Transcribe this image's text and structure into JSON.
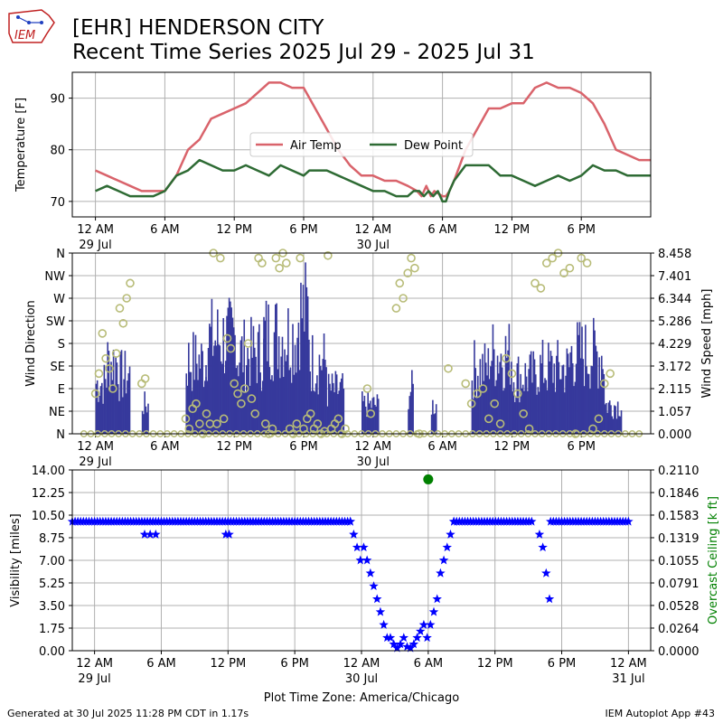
{
  "header": {
    "title_line1": "[EHR] HENDERSON CITY",
    "title_line2": "Recent Time Series 2025 Jul 29 - 2025 Jul 31",
    "logo_text": "IEM"
  },
  "footer": {
    "generated": "Generated at 30 Jul 2025 11:28 PM CDT in 1.17s",
    "app": "IEM Autoplot App #43"
  },
  "colors": {
    "air_temp": "#d9636b",
    "dew_point": "#2e6b34",
    "wind_speed_bar": "#36399c",
    "wind_dir_marker": "#b8bc78",
    "visibility": "#0000ff",
    "ceiling": "#008000",
    "grid": "#b0b0b0"
  },
  "chart_data": [
    {
      "type": "line",
      "panel": "temperature",
      "ylabel": "Temperature [F]",
      "x_units": "hours since 29 Jul 12 AM",
      "x_ticks": [
        {
          "x": 0,
          "label": "12 AM",
          "sub": "29 Jul"
        },
        {
          "x": 6,
          "label": "6 AM"
        },
        {
          "x": 12,
          "label": "12 PM"
        },
        {
          "x": 18,
          "label": "6 PM"
        },
        {
          "x": 24,
          "label": "12 AM",
          "sub": "30 Jul"
        },
        {
          "x": 30,
          "label": "6 AM"
        },
        {
          "x": 36,
          "label": "12 PM"
        },
        {
          "x": 42,
          "label": "6 PM"
        }
      ],
      "xlim": [
        -2,
        48
      ],
      "yticks": [
        70,
        80,
        90
      ],
      "ylim": [
        67,
        95
      ],
      "legend": {
        "placement": "center",
        "entries": [
          "Air Temp",
          "Dew Point"
        ]
      },
      "series": [
        {
          "name": "Air Temp",
          "color": "#d9636b",
          "x": [
            0,
            1,
            2,
            3,
            4,
            5,
            6,
            7,
            8,
            9,
            10,
            11,
            12,
            13,
            14,
            15,
            16,
            17,
            18,
            19,
            20,
            21,
            22,
            23,
            24,
            25,
            26,
            27,
            27.8,
            28.2,
            28.6,
            29,
            29.3,
            30,
            30.3,
            30.6,
            31,
            32,
            33,
            34,
            35,
            36,
            37,
            38,
            39,
            40,
            41,
            42,
            43,
            44,
            45,
            46,
            47,
            48
          ],
          "y": [
            76,
            75,
            74,
            73,
            72,
            72,
            72,
            75,
            80,
            82,
            86,
            87,
            88,
            89,
            91,
            93,
            93,
            92,
            92,
            88,
            84,
            80,
            77,
            75,
            75,
            74,
            74,
            73,
            72,
            71,
            73,
            71,
            72,
            71,
            71,
            72,
            74,
            80,
            84,
            88,
            88,
            89,
            89,
            92,
            93,
            92,
            92,
            91,
            89,
            85,
            80,
            79,
            78,
            78
          ]
        },
        {
          "name": "Dew Point",
          "color": "#2e6b34",
          "x": [
            0,
            1,
            2,
            3,
            4,
            5,
            6,
            7,
            8,
            9,
            10,
            11,
            12,
            13,
            14,
            15,
            16,
            17,
            18,
            18.5,
            19,
            20,
            21,
            22,
            23,
            24,
            25,
            26,
            27,
            27.5,
            28,
            28.4,
            28.8,
            29.2,
            29.6,
            30,
            30.3,
            30.6,
            31,
            32,
            33,
            34,
            35,
            36,
            37,
            38,
            39,
            40,
            41,
            42,
            43,
            44,
            45,
            46,
            47,
            48
          ],
          "y": [
            72,
            73,
            72,
            71,
            71,
            71,
            72,
            75,
            76,
            78,
            77,
            76,
            76,
            77,
            76,
            75,
            77,
            76,
            75,
            76,
            76,
            76,
            75,
            74,
            73,
            72,
            72,
            71,
            71,
            72,
            72,
            71,
            72,
            71,
            72,
            70,
            70,
            72,
            74,
            77,
            77,
            77,
            75,
            75,
            74,
            73,
            74,
            75,
            74,
            75,
            77,
            76,
            76,
            75,
            75,
            75
          ]
        }
      ]
    },
    {
      "type": "scatter",
      "panel": "wind",
      "ylabel": "Wind Direction",
      "y2label": "Wind Speed [mph]",
      "direction_ticks": [
        "N",
        "NE",
        "E",
        "SE",
        "S",
        "SW",
        "W",
        "NW",
        "N"
      ],
      "direction_ylim": [
        0,
        360
      ],
      "speed_ticks": [
        "0.000",
        "1.057",
        "2.115",
        "3.172",
        "4.229",
        "5.286",
        "6.344",
        "7.401",
        "8.458"
      ],
      "speed_ylim": [
        0,
        8.458
      ],
      "xlim": [
        -2,
        48
      ],
      "bar_series": {
        "name": "Wind Speed",
        "color": "#36399c",
        "bursts": [
          [
            0.0,
            1.0,
            3.5
          ],
          [
            1.0,
            2.0,
            5.0
          ],
          [
            2.0,
            3.0,
            4.0
          ],
          [
            4.0,
            4.5,
            2.0
          ],
          [
            7.8,
            9.5,
            5.0
          ],
          [
            9.5,
            12.0,
            6.5
          ],
          [
            12.0,
            14.5,
            5.5
          ],
          [
            14.5,
            17.5,
            6.8
          ],
          [
            17.5,
            18.5,
            8.4
          ],
          [
            18.5,
            20.0,
            5.0
          ],
          [
            20.0,
            21.5,
            3.0
          ],
          [
            23.0,
            24.5,
            2.0
          ],
          [
            27.0,
            27.5,
            3.0
          ],
          [
            29.0,
            29.5,
            2.0
          ],
          [
            32.5,
            34.0,
            4.5
          ],
          [
            34.0,
            36.0,
            5.5
          ],
          [
            36.0,
            38.0,
            4.0
          ],
          [
            38.0,
            41.0,
            4.5
          ],
          [
            41.0,
            44.0,
            5.5
          ],
          [
            44.0,
            45.5,
            2.0
          ]
        ]
      },
      "marker_series": {
        "name": "Wind Direction",
        "color": "#b8bc78",
        "x": [
          0,
          0.3,
          0.6,
          0.9,
          1.2,
          1.5,
          1.8,
          2.1,
          2.4,
          2.7,
          3.0,
          4.0,
          4.3,
          7.8,
          8.1,
          8.4,
          8.7,
          9.0,
          9.3,
          9.6,
          9.9,
          10.2,
          10.5,
          10.8,
          11.1,
          11.4,
          11.7,
          12.0,
          12.3,
          12.6,
          12.9,
          13.2,
          13.5,
          13.8,
          14.1,
          14.4,
          14.7,
          15.0,
          15.3,
          15.6,
          15.9,
          16.2,
          16.5,
          16.8,
          17.1,
          17.4,
          17.7,
          18.0,
          18.3,
          18.6,
          18.9,
          19.2,
          19.5,
          19.8,
          20.1,
          20.4,
          20.7,
          21.0,
          21.3,
          21.6,
          23.5,
          23.8,
          26.0,
          26.3,
          26.6,
          27.0,
          27.3,
          27.6,
          28.0,
          30.5,
          32.0,
          32.5,
          33.0,
          33.5,
          34.0,
          34.5,
          35.0,
          35.5,
          36.0,
          36.5,
          37.0,
          37.5,
          38.0,
          38.5,
          39.0,
          39.5,
          40.0,
          40.5,
          41.0,
          41.5,
          42.0,
          42.5,
          43.0,
          43.5,
          44.0,
          44.5
        ],
        "y": [
          80,
          120,
          200,
          150,
          130,
          90,
          160,
          250,
          220,
          270,
          300,
          100,
          110,
          30,
          10,
          50,
          60,
          20,
          0,
          40,
          20,
          360,
          20,
          350,
          30,
          190,
          170,
          100,
          80,
          60,
          90,
          180,
          70,
          40,
          350,
          340,
          20,
          0,
          10,
          350,
          330,
          360,
          340,
          10,
          0,
          20,
          350,
          10,
          30,
          40,
          10,
          20,
          0,
          5,
          355,
          10,
          20,
          30,
          0,
          10,
          90,
          40,
          250,
          300,
          270,
          320,
          350,
          330,
          0,
          130,
          100,
          60,
          80,
          90,
          30,
          60,
          20,
          150,
          120,
          80,
          40,
          10,
          300,
          290,
          340,
          350,
          360,
          320,
          330,
          0,
          350,
          340,
          10,
          30,
          100,
          120
        ]
      }
    },
    {
      "type": "scatter",
      "panel": "visibility",
      "xlabel": "Plot Time Zone: America/Chicago",
      "ylabel": "Visibility [miles]",
      "y2label": "Overcast Ceiling [k ft]",
      "x_ticks": [
        {
          "x": 0,
          "label": "12 AM",
          "sub": "29 Jul"
        },
        {
          "x": 6,
          "label": "6 AM"
        },
        {
          "x": 12,
          "label": "12 PM"
        },
        {
          "x": 18,
          "label": "6 PM"
        },
        {
          "x": 24,
          "label": "12 AM",
          "sub": "30 Jul"
        },
        {
          "x": 30,
          "label": "6 AM"
        },
        {
          "x": 36,
          "label": "12 PM"
        },
        {
          "x": 42,
          "label": "6 PM"
        },
        {
          "x": 48,
          "label": "12 AM",
          "sub": "31 Jul"
        }
      ],
      "xlim": [
        -2,
        50
      ],
      "yticks": [
        "0.00",
        "1.75",
        "3.50",
        "5.25",
        "7.00",
        "8.75",
        "10.50",
        "12.25",
        "14.00"
      ],
      "ylim": [
        0,
        14
      ],
      "y2ticks": [
        "0.0000",
        "0.0264",
        "0.0528",
        "0.0791",
        "0.1055",
        "0.1319",
        "0.1583",
        "0.1846",
        "0.2110"
      ],
      "y2lim": [
        0,
        0.211
      ],
      "series": [
        {
          "name": "Visibility",
          "color": "#0000ff",
          "marker": "star",
          "x": [
            23.0,
            23.3,
            23.6,
            23.9,
            24.2,
            24.5,
            24.8,
            25.1,
            25.4,
            25.7,
            26.0,
            26.3,
            26.6,
            26.9,
            27.2,
            27.5,
            27.8,
            28.1,
            28.4,
            28.7,
            29.0,
            29.3,
            29.6,
            29.9,
            30.2,
            30.5,
            30.8,
            31.1,
            31.4,
            31.7,
            32.0,
            32.3,
            4.5,
            5.0,
            5.5,
            11.8,
            12.1,
            40.0,
            40.3,
            40.6,
            40.9
          ],
          "y": [
            10,
            9,
            8,
            7,
            8,
            7,
            6,
            5,
            4,
            3,
            2,
            1,
            1,
            0.5,
            0.2,
            0.5,
            1,
            0.3,
            0.2,
            0.5,
            1,
            1.5,
            2,
            1,
            2,
            3,
            4,
            6,
            7,
            8,
            9,
            10,
            9,
            9,
            9,
            9,
            9,
            9,
            8,
            6,
            4
          ]
        },
        {
          "name": "Visibility baseline",
          "color": "#0000ff",
          "value": 10,
          "segments": [
            [
              -2,
              23
            ],
            [
              32.3,
              39.5
            ],
            [
              41,
              48
            ]
          ]
        },
        {
          "name": "Overcast Ceiling",
          "color": "#008000",
          "marker": "circle",
          "x": [
            30
          ],
          "y": [
            0.2
          ]
        }
      ]
    }
  ]
}
